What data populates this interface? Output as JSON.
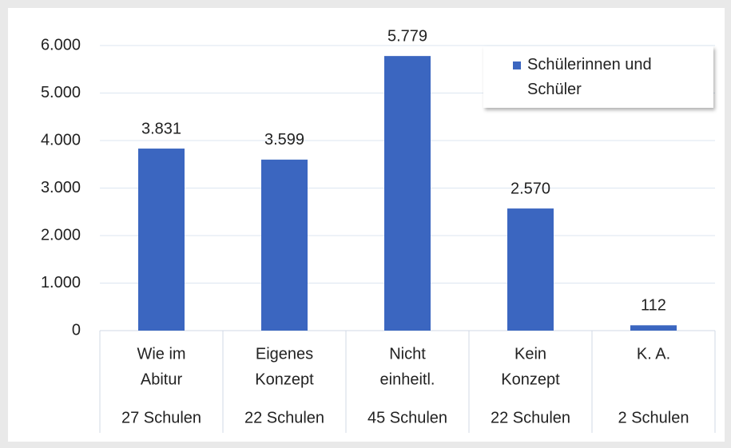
{
  "chart_data": {
    "type": "bar",
    "categories": [
      [
        "Wie im",
        "Abitur"
      ],
      [
        "Eigenes",
        "Konzept"
      ],
      [
        "Nicht",
        "einheitl."
      ],
      [
        "Kein",
        "Konzept"
      ],
      [
        "K. A."
      ]
    ],
    "groups": [
      "27 Schulen",
      "22 Schulen",
      "45 Schulen",
      "22 Schulen",
      "2 Schulen"
    ],
    "series": [
      {
        "name": "Schülerinnen und Schüler",
        "color": "#3b66c0",
        "values": [
          3831,
          3599,
          5779,
          2570,
          112
        ],
        "value_labels": [
          "3.831",
          "3.599",
          "5.779",
          "2.570",
          "112"
        ]
      }
    ],
    "ylim": [
      0,
      6000
    ],
    "yticks": [
      0,
      {
        "value": 1000,
        "label": "1.000"
      },
      {
        "value": 2000,
        "label": "2.000"
      },
      {
        "value": 3000,
        "label": "3.000"
      },
      {
        "value": 4000,
        "label": "4.000"
      },
      {
        "value": 5000,
        "label": "5.000"
      },
      {
        "value": 6000,
        "label": "6.000"
      }
    ],
    "grid": true,
    "legend": "top-right"
  }
}
